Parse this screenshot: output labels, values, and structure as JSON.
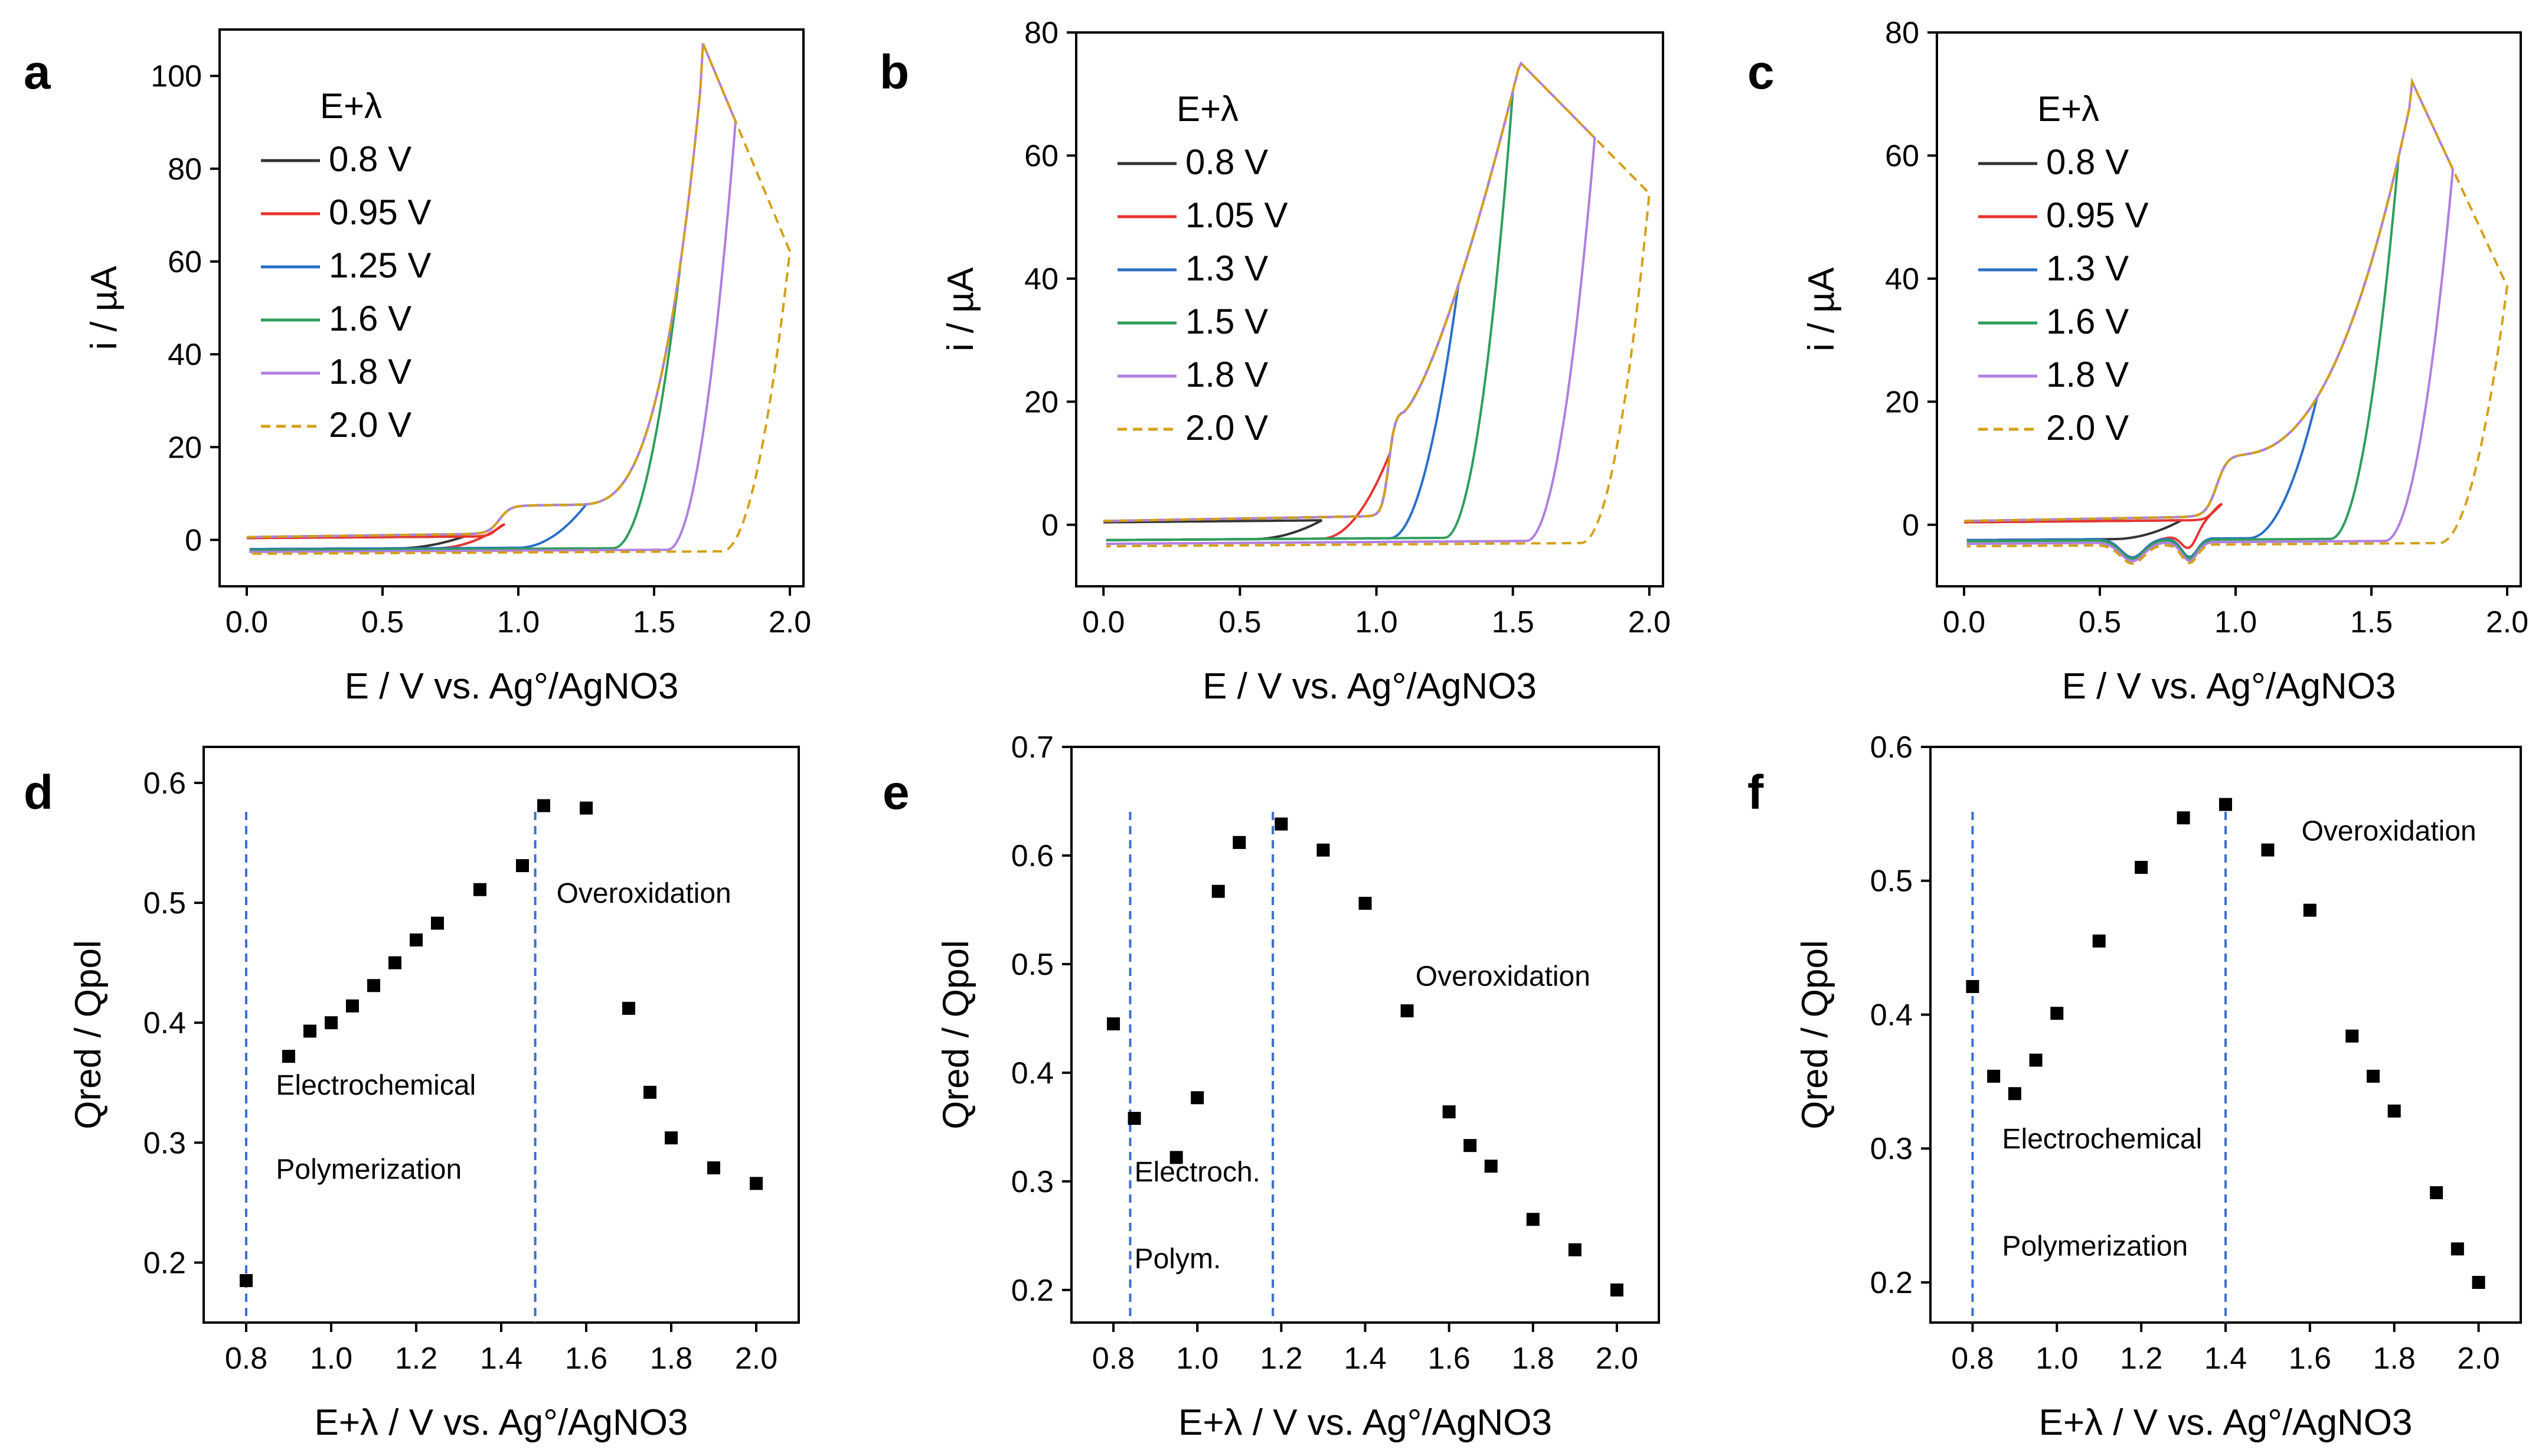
{
  "colors": {
    "v_low": "#333333",
    "red": "#e8332f",
    "blue": "#2a6fc9",
    "green": "#2e9e5b",
    "purple": "#b07ee0",
    "gold": "#d4a017",
    "guide": "#3a6fd0",
    "marker": "#000000"
  },
  "chart_data": [
    {
      "panel": "a",
      "type": "line",
      "xlabel": "E / V vs. Ag°/AgNO3",
      "ylabel": "i / µA",
      "xlim": [
        -0.1,
        2.05
      ],
      "ylim": [
        -10,
        110
      ],
      "xticks": [
        0.0,
        0.5,
        1.0,
        1.5,
        2.0
      ],
      "xtick_labels": [
        "0.0",
        "0.5",
        "1.0",
        "1.5",
        "2.0"
      ],
      "yticks": [
        0,
        20,
        40,
        60,
        80,
        100
      ],
      "ytick_labels": [
        "0",
        "20",
        "40",
        "60",
        "80",
        "100"
      ],
      "legend_title": "E+λ",
      "legend_position": "upper-left",
      "peak": [
        1.68,
        107
      ],
      "series": [
        {
          "name": "0.8 V",
          "color_key": "v_low",
          "vertex": 0.8,
          "dashed": false
        },
        {
          "name": "0.95 V",
          "color_key": "red",
          "vertex": 0.95,
          "dashed": false
        },
        {
          "name": "1.25 V",
          "color_key": "blue",
          "vertex": 1.25,
          "dashed": false
        },
        {
          "name": "1.6 V",
          "color_key": "green",
          "vertex": 1.6,
          "dashed": false
        },
        {
          "name": "1.8 V",
          "color_key": "purple",
          "vertex": 1.8,
          "dashed": false
        },
        {
          "name": "2.0 V",
          "color_key": "gold",
          "vertex": 2.0,
          "dashed": true
        }
      ]
    },
    {
      "panel": "b",
      "type": "line",
      "xlabel": "E / V vs. Ag°/AgNO3",
      "ylabel": "i / µA",
      "xlim": [
        -0.1,
        2.05
      ],
      "ylim": [
        -10,
        80
      ],
      "xticks": [
        0.0,
        0.5,
        1.0,
        1.5,
        2.0
      ],
      "xtick_labels": [
        "0.0",
        "0.5",
        "1.0",
        "1.5",
        "2.0"
      ],
      "yticks": [
        0,
        20,
        40,
        60,
        80
      ],
      "ytick_labels": [
        "0",
        "20",
        "40",
        "60",
        "80"
      ],
      "legend_title": "E+λ",
      "legend_position": "upper-left",
      "peak": [
        1.53,
        75
      ],
      "series": [
        {
          "name": "0.8 V",
          "color_key": "v_low",
          "vertex": 0.8,
          "dashed": false
        },
        {
          "name": "1.05 V",
          "color_key": "red",
          "vertex": 1.05,
          "dashed": false
        },
        {
          "name": "1.3 V",
          "color_key": "blue",
          "vertex": 1.3,
          "dashed": false
        },
        {
          "name": "1.5 V",
          "color_key": "green",
          "vertex": 1.5,
          "dashed": false
        },
        {
          "name": "1.8 V",
          "color_key": "purple",
          "vertex": 1.8,
          "dashed": false
        },
        {
          "name": "2.0 V",
          "color_key": "gold",
          "vertex": 2.0,
          "dashed": true
        }
      ]
    },
    {
      "panel": "c",
      "type": "line",
      "xlabel": "E / V vs. Ag°/AgNO3",
      "ylabel": "i / µA",
      "xlim": [
        -0.1,
        2.05
      ],
      "ylim": [
        -10,
        80
      ],
      "xticks": [
        0.0,
        0.5,
        1.0,
        1.5,
        2.0
      ],
      "xtick_labels": [
        "0.0",
        "0.5",
        "1.0",
        "1.5",
        "2.0"
      ],
      "yticks": [
        0,
        20,
        40,
        60,
        80
      ],
      "ytick_labels": [
        "0",
        "20",
        "40",
        "60",
        "80"
      ],
      "legend_title": "E+λ",
      "legend_position": "upper-left",
      "peak": [
        1.65,
        72
      ],
      "series": [
        {
          "name": "0.8 V",
          "color_key": "v_low",
          "vertex": 0.8,
          "dashed": false
        },
        {
          "name": "0.95 V",
          "color_key": "red",
          "vertex": 0.95,
          "dashed": false
        },
        {
          "name": "1.3 V",
          "color_key": "blue",
          "vertex": 1.3,
          "dashed": false
        },
        {
          "name": "1.6 V",
          "color_key": "green",
          "vertex": 1.6,
          "dashed": false
        },
        {
          "name": "1.8 V",
          "color_key": "purple",
          "vertex": 1.8,
          "dashed": false
        },
        {
          "name": "2.0 V",
          "color_key": "gold",
          "vertex": 2.0,
          "dashed": true
        }
      ]
    },
    {
      "panel": "d",
      "type": "scatter",
      "xlabel": "E+λ / V vs. Ag°/AgNO3",
      "ylabel": "Qred / Qpol",
      "xlim": [
        0.7,
        2.1
      ],
      "ylim": [
        0.15,
        0.63
      ],
      "xticks": [
        0.8,
        1.0,
        1.2,
        1.4,
        1.6,
        1.8,
        2.0
      ],
      "xtick_labels": [
        "0.8",
        "1.0",
        "1.2",
        "1.4",
        "1.6",
        "1.8",
        "2.0"
      ],
      "yticks": [
        0.2,
        0.3,
        0.4,
        0.5,
        0.6
      ],
      "ytick_labels": [
        "0.2",
        "0.3",
        "0.4",
        "0.5",
        "0.6"
      ],
      "guides": [
        0.8,
        1.48
      ],
      "x": [
        0.8,
        0.9,
        0.95,
        1.0,
        1.05,
        1.1,
        1.15,
        1.2,
        1.25,
        1.35,
        1.45,
        1.5,
        1.6,
        1.7,
        1.75,
        1.8,
        1.9,
        2.0
      ],
      "y": [
        0.185,
        0.372,
        0.393,
        0.4,
        0.414,
        0.431,
        0.45,
        0.469,
        0.483,
        0.511,
        0.531,
        0.581,
        0.579,
        0.412,
        0.342,
        0.304,
        0.279,
        0.266
      ],
      "annotations": [
        {
          "text": "Electrochemical",
          "x": 0.87,
          "y": 0.34
        },
        {
          "text": "Polymerization",
          "x": 0.87,
          "y": 0.27
        },
        {
          "text": "Overoxidation",
          "x": 1.53,
          "y": 0.5
        }
      ]
    },
    {
      "panel": "e",
      "type": "scatter",
      "xlabel": "E+λ / V vs. Ag°/AgNO3",
      "ylabel": "Qred / Qpol",
      "xlim": [
        0.7,
        2.1
      ],
      "ylim": [
        0.17,
        0.7
      ],
      "xticks": [
        0.8,
        1.0,
        1.2,
        1.4,
        1.6,
        1.8,
        2.0
      ],
      "xtick_labels": [
        "0.8",
        "1.0",
        "1.2",
        "1.4",
        "1.6",
        "1.8",
        "2.0"
      ],
      "yticks": [
        0.2,
        0.3,
        0.4,
        0.5,
        0.6,
        0.7
      ],
      "ytick_labels": [
        "0.2",
        "0.3",
        "0.4",
        "0.5",
        "0.6",
        "0.7"
      ],
      "guides": [
        0.84,
        1.18
      ],
      "x": [
        0.8,
        0.85,
        0.95,
        1.0,
        1.05,
        1.1,
        1.2,
        1.3,
        1.4,
        1.5,
        1.6,
        1.65,
        1.7,
        1.8,
        1.9,
        2.0
      ],
      "y": [
        0.445,
        0.358,
        0.322,
        0.377,
        0.567,
        0.612,
        0.629,
        0.605,
        0.556,
        0.457,
        0.364,
        0.333,
        0.314,
        0.265,
        0.237,
        0.2
      ],
      "annotations": [
        {
          "text": "Electroch.",
          "x": 0.85,
          "y": 0.3
        },
        {
          "text": "Polym.",
          "x": 0.85,
          "y": 0.22
        },
        {
          "text": "Overoxidation",
          "x": 1.52,
          "y": 0.48
        }
      ]
    },
    {
      "panel": "f",
      "type": "scatter",
      "xlabel": "E+λ / V vs. Ag°/AgNO3",
      "ylabel": "Qred / Qpol",
      "xlim": [
        0.7,
        2.1
      ],
      "ylim": [
        0.17,
        0.6
      ],
      "xticks": [
        0.8,
        1.0,
        1.2,
        1.4,
        1.6,
        1.8,
        2.0
      ],
      "xtick_labels": [
        "0.8",
        "1.0",
        "1.2",
        "1.4",
        "1.6",
        "1.8",
        "2.0"
      ],
      "yticks": [
        0.2,
        0.3,
        0.4,
        0.5,
        0.6
      ],
      "ytick_labels": [
        "0.2",
        "0.3",
        "0.4",
        "0.5",
        "0.6"
      ],
      "guides": [
        0.8,
        1.4
      ],
      "x": [
        0.8,
        0.85,
        0.9,
        0.95,
        1.0,
        1.1,
        1.2,
        1.3,
        1.4,
        1.5,
        1.6,
        1.7,
        1.75,
        1.8,
        1.9,
        1.95,
        2.0
      ],
      "y": [
        0.421,
        0.354,
        0.341,
        0.366,
        0.401,
        0.455,
        0.51,
        0.547,
        0.557,
        0.523,
        0.478,
        0.384,
        0.354,
        0.328,
        0.267,
        0.225,
        0.2
      ],
      "annotations": [
        {
          "text": "Electrochemical",
          "x": 0.87,
          "y": 0.3
        },
        {
          "text": "Polymerization",
          "x": 0.87,
          "y": 0.22
        },
        {
          "text": "Overoxidation",
          "x": 1.58,
          "y": 0.53
        }
      ]
    }
  ],
  "panel_labels": [
    "a",
    "b",
    "c",
    "d",
    "e",
    "f"
  ]
}
